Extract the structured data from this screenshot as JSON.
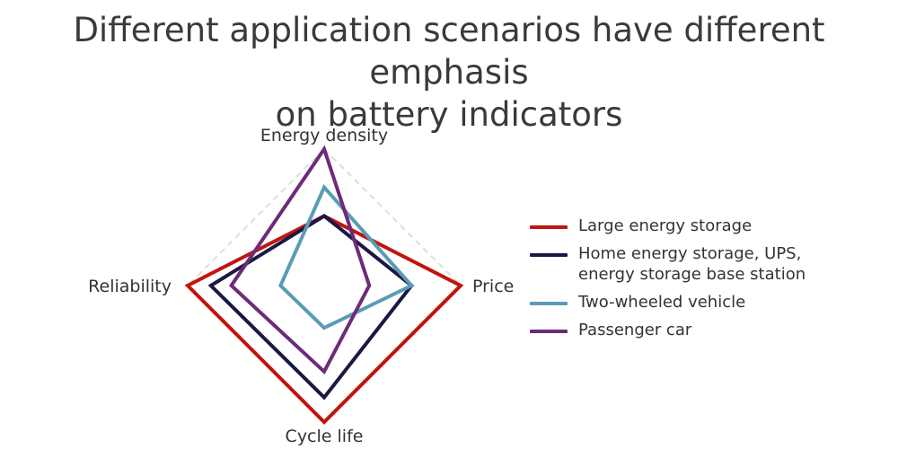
{
  "title_lines": [
    "Different application scenarios have different emphasis",
    "on battery indicators"
  ],
  "chart_data": {
    "type": "radar",
    "title": "Different application scenarios have different emphasis on battery indicators",
    "axes": [
      "Energy density",
      "Price",
      "Cycle life",
      "Reliability"
    ],
    "range": [
      0,
      1
    ],
    "grid": true,
    "legend_position": "right",
    "series": [
      {
        "name": "Large energy storage",
        "color": "#c0150f",
        "values": [
          0.51,
          1.0,
          1.0,
          1.0
        ]
      },
      {
        "name": "Home energy storage, UPS,\nenergy storage base station",
        "color": "#1b1845",
        "values": [
          0.51,
          0.64,
          0.82,
          0.83
        ]
      },
      {
        "name": "Two-wheeled vehicle",
        "color": "#5b9bb5",
        "values": [
          0.72,
          0.64,
          0.31,
          0.32
        ]
      },
      {
        "name": "Passenger car",
        "color": "#6e2a7a",
        "values": [
          1.0,
          0.33,
          0.63,
          0.68
        ]
      }
    ]
  }
}
